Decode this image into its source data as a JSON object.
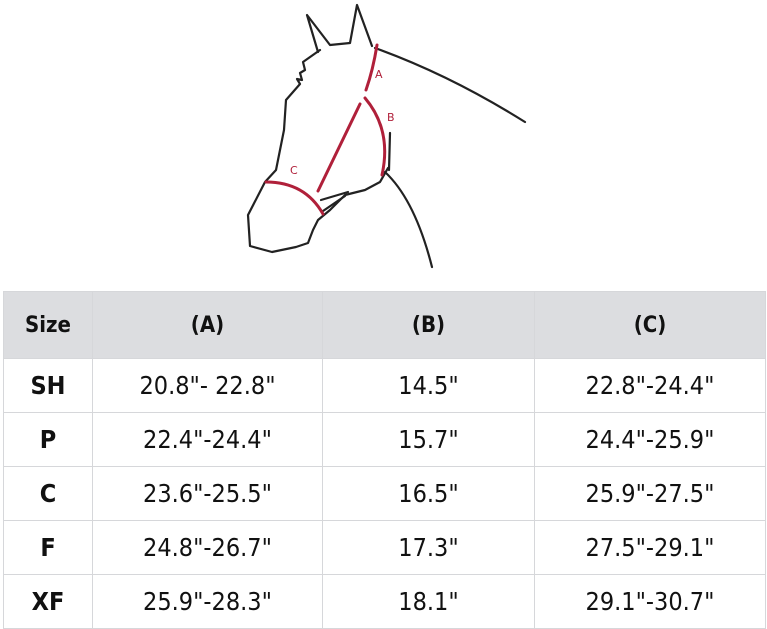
{
  "diagram": {
    "labels": {
      "a": "A",
      "b": "B",
      "c": "C"
    },
    "accent_color": "#b0203a",
    "outline_color": "#222222"
  },
  "table": {
    "headers": [
      "Size",
      "(A)",
      "(B)",
      "(C)"
    ],
    "rows": [
      [
        "SH",
        "20.8\"- 22.8\"",
        "14.5\"",
        "22.8\"-24.4\""
      ],
      [
        "P",
        "22.4\"-24.4\"",
        "15.7\"",
        "24.4\"-25.9\""
      ],
      [
        "C",
        "23.6\"-25.5\"",
        "16.5\"",
        "25.9\"-27.5\""
      ],
      [
        "F",
        "24.8\"-26.7\"",
        "17.3\"",
        "27.5\"-29.1\""
      ],
      [
        "XF",
        "25.9\"-28.3\"",
        "18.1\"",
        "29.1\"-30.7\""
      ]
    ]
  }
}
